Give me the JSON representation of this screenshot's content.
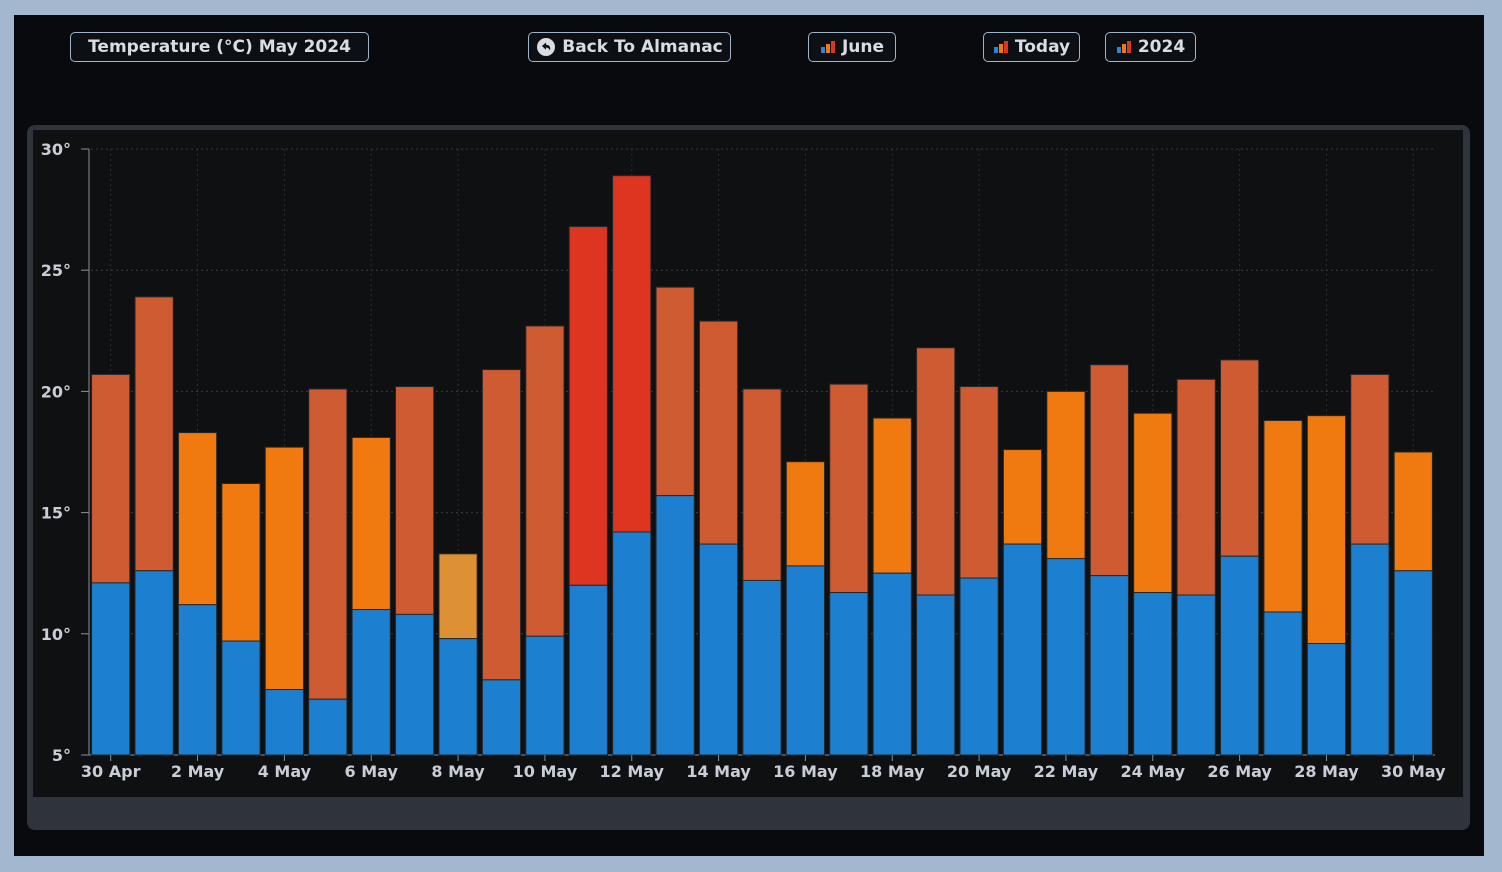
{
  "header": {
    "title_button": "Temperature (°C) May 2024",
    "back_button": "Back To Almanac",
    "june_button": "June",
    "today_button": "Today",
    "year_button": "2024"
  },
  "icons": {
    "back": "circle-arrow-back-icon",
    "bar_chart": "bar-chart-icon"
  },
  "colors": {
    "low_bar": "#1c7fd0",
    "high_warm": "#f07a10",
    "high_warmer": "#cf5b32",
    "high_hot": "#dd3520",
    "high_mild": "#de9034",
    "plot_bg": "#0f1012",
    "page_bg": "#080a0d"
  },
  "chart_data": {
    "type": "bar",
    "stacked_range": true,
    "x_tick_labels": [
      "30 Apr",
      "2 May",
      "4 May",
      "6 May",
      "8 May",
      "10 May",
      "12 May",
      "14 May",
      "16 May",
      "18 May",
      "20 May",
      "22 May",
      "24 May",
      "26 May",
      "28 May",
      "30 May"
    ],
    "y_tick_labels": [
      "5°",
      "10°",
      "15°",
      "20°",
      "25°",
      "30°"
    ],
    "ylim": [
      5,
      30
    ],
    "grid": true,
    "categories": [
      "30 Apr",
      "1 May",
      "2 May",
      "3 May",
      "4 May",
      "5 May",
      "6 May",
      "7 May",
      "8 May",
      "9 May",
      "10 May",
      "11 May",
      "12 May",
      "13 May",
      "14 May",
      "15 May",
      "16 May",
      "17 May",
      "18 May",
      "19 May",
      "20 May",
      "21 May",
      "22 May",
      "23 May",
      "24 May",
      "25 May",
      "26 May",
      "27 May",
      "28 May",
      "29 May",
      "30 May"
    ],
    "series": [
      {
        "values": [
          12.1,
          12.6,
          11.2,
          9.7,
          7.7,
          7.3,
          11.0,
          10.8,
          9.8,
          8.1,
          9.9,
          12.0,
          14.2,
          15.7,
          13.7,
          12.2,
          12.8,
          11.7,
          12.5,
          11.6,
          12.3,
          13.7,
          13.1,
          12.4,
          11.7,
          11.6,
          13.2,
          10.9,
          9.6,
          13.7,
          12.6
        ]
      },
      {
        "values": [
          20.7,
          23.9,
          18.3,
          16.2,
          17.7,
          20.1,
          18.1,
          20.2,
          13.3,
          20.9,
          22.7,
          26.8,
          28.9,
          24.3,
          22.9,
          20.1,
          17.1,
          20.3,
          18.9,
          21.8,
          20.2,
          17.6,
          20.0,
          21.1,
          19.1,
          20.5,
          21.3,
          18.8,
          19.0,
          20.7,
          17.5
        ]
      }
    ],
    "high_color_keys": [
      "high_warmer",
      "high_warmer",
      "high_warm",
      "high_warm",
      "high_warm",
      "high_warmer",
      "high_warm",
      "high_warmer",
      "high_mild",
      "high_warmer",
      "high_warmer",
      "high_hot",
      "high_hot",
      "high_warmer",
      "high_warmer",
      "high_warmer",
      "high_warm",
      "high_warmer",
      "high_warm",
      "high_warmer",
      "high_warmer",
      "high_warm",
      "high_warm",
      "high_warmer",
      "high_warm",
      "high_warmer",
      "high_warmer",
      "high_warm",
      "high_warm",
      "high_warmer",
      "high_warm"
    ]
  }
}
